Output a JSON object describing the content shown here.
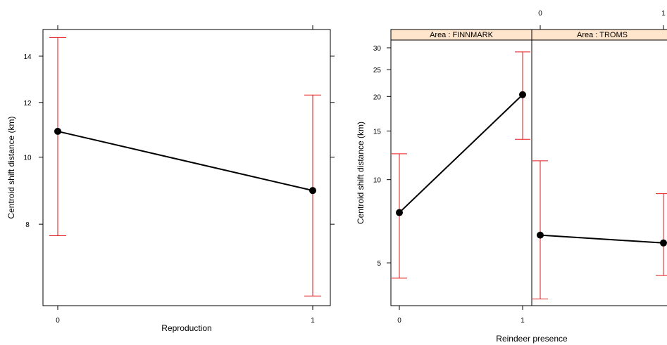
{
  "chart_data": [
    {
      "type": "line",
      "xlabel": "Reproduction",
      "ylabel": "Centroid shift distance (km)",
      "y_scale": "log",
      "ylim": [
        6.1,
        15.3
      ],
      "x": [
        "0",
        "1"
      ],
      "y_ticks": [
        "8",
        "10",
        "12",
        "14"
      ],
      "grid": false,
      "series": [
        {
          "values": [
            10.9,
            8.95
          ],
          "lower": [
            7.7,
            6.3
          ],
          "upper": [
            14.9,
            12.3
          ]
        }
      ],
      "colors": {
        "line": "#000000",
        "error_bar": "#e31a1c"
      }
    },
    {
      "type": "line",
      "xlabel": "Reindeer presence",
      "ylabel": "Centroid shift distance (km)",
      "y_scale": "log",
      "ylim": [
        3.5,
        32
      ],
      "x": [
        "0",
        "1"
      ],
      "y_ticks": [
        "5",
        "10",
        "15",
        "20",
        "25",
        "30"
      ],
      "grid": false,
      "panels": [
        {
          "strip": "Area : FINNMARK",
          "values": [
            7.6,
            20.3
          ],
          "lower": [
            4.4,
            14.0
          ],
          "upper": [
            12.4,
            29.0
          ]
        },
        {
          "strip": "Area : TROMS",
          "values": [
            6.3,
            5.9
          ],
          "lower": [
            3.7,
            4.5
          ],
          "upper": [
            11.7,
            8.9
          ]
        }
      ],
      "colors": {
        "line": "#000000",
        "error_bar": "#e31a1c",
        "strip": "#ffe5cc"
      }
    }
  ]
}
